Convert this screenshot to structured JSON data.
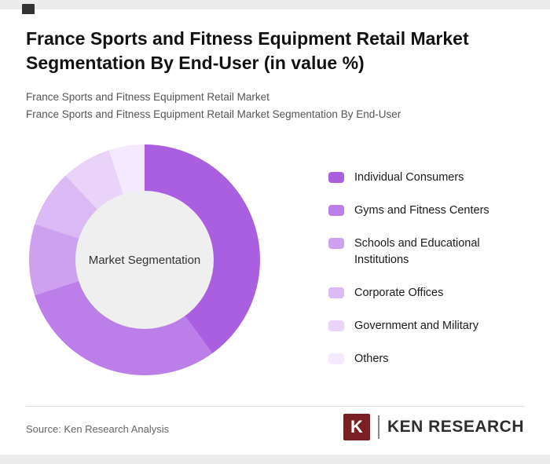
{
  "page": {
    "title": "France Sports and Fitness Equipment Retail Market Segmentation By End-User (in value %)",
    "subtitles": [
      "France Sports and Fitness Equipment Retail Market",
      "France Sports and Fitness Equipment Retail Market Segmentation By End-User"
    ],
    "source": "Source: Ken Research Analysis",
    "logo": {
      "letter": "K",
      "brand": "KEN RESEARCH"
    }
  },
  "chart_data": {
    "type": "pie",
    "donut": true,
    "title": "France Sports and Fitness Equipment Retail Market Segmentation By End-User (in value %)",
    "center_label": "Market Segmentation",
    "legend_position": "right",
    "values_labeled": false,
    "start_angle_deg": 0,
    "direction": "clockwise",
    "series": [
      {
        "name": "Individual Consumers",
        "value": 40,
        "color": "#a95fe0"
      },
      {
        "name": "Gyms and Fitness Centers",
        "value": 30,
        "color": "#bc7ee9"
      },
      {
        "name": "Schools and Educational Institutions",
        "value": 10,
        "color": "#cda0f0"
      },
      {
        "name": "Corporate Offices",
        "value": 8,
        "color": "#dbb9f4"
      },
      {
        "name": "Government and Military",
        "value": 7,
        "color": "#e9d3f9"
      },
      {
        "name": "Others",
        "value": 5,
        "color": "#f4e9fd"
      }
    ]
  }
}
